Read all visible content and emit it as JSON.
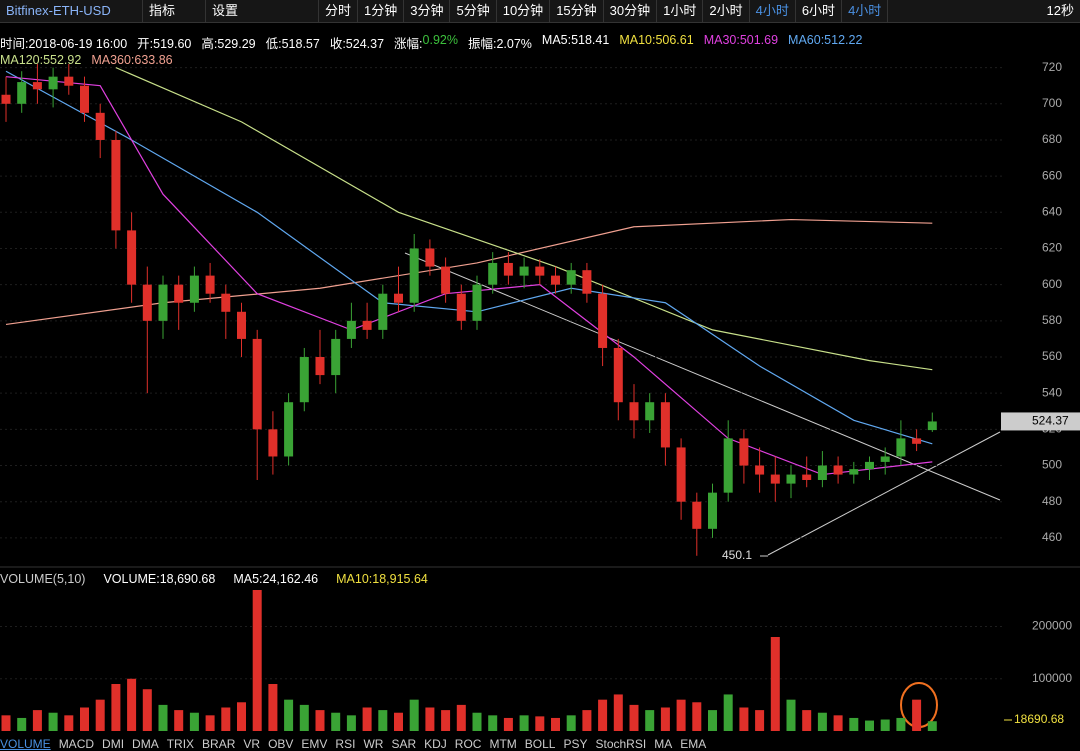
{
  "toolbar": {
    "symbol": "Bitfinex-ETH-USD",
    "indicator": "指标",
    "settings": "设置",
    "intervals": [
      "分时",
      "1分钟",
      "3分钟",
      "5分钟",
      "10分钟",
      "15分钟",
      "30分钟",
      "1小时",
      "2小时",
      "4小时",
      "6小时",
      "4小时"
    ],
    "active": [
      9,
      11
    ],
    "timer": "12秒"
  },
  "info": {
    "items": [
      {
        "text": "时间:2018-06-19 16:00",
        "color": "#ffffff"
      },
      {
        "text": "开:519.60",
        "color": "#ffffff"
      },
      {
        "text": "高:529.29",
        "color": "#ffffff"
      },
      {
        "text": "低:518.57",
        "color": "#ffffff"
      },
      {
        "text": "收:524.37",
        "color": "#ffffff"
      },
      {
        "text": "涨幅:",
        "color": "#ffffff"
      },
      {
        "text": "0.92%",
        "color": "#3cc03c"
      },
      {
        "text": "振幅:2.07%",
        "color": "#ffffff"
      },
      {
        "text": "MA5:518.41",
        "color": "#ffffff"
      },
      {
        "text": "MA10:506.61",
        "color": "#f0e040"
      },
      {
        "text": "MA30:501.69",
        "color": "#e040e0"
      },
      {
        "text": "MA60:512.22",
        "color": "#60a8f0"
      }
    ],
    "ma_items": [
      {
        "text": "MA120:552.92",
        "color": "#c8e08a"
      },
      {
        "text": "MA360:633.86",
        "color": "#f0a090"
      }
    ]
  },
  "volume_info": {
    "title": "VOLUME(5,10)",
    "items": [
      {
        "text": "VOLUME:18,690.68",
        "color": "#ffffff"
      },
      {
        "text": "MA5:24,162.46",
        "color": "#ffffff"
      },
      {
        "text": "MA10:18,915.64",
        "color": "#f0e040"
      }
    ]
  },
  "tabs": [
    "VOLUME",
    "MACD",
    "DMI",
    "DMA",
    "TRIX",
    "BRAR",
    "VR",
    "OBV",
    "EMV",
    "RSI",
    "WR",
    "SAR",
    "KDJ",
    "ROC",
    "MTM",
    "BOLL",
    "PSY",
    "StochRSI",
    "MA",
    "EMA"
  ],
  "chart_data": {
    "type": "candlestick",
    "up_color": "#3aa335",
    "down_color": "#e0302a",
    "ylim": [
      445,
      722
    ],
    "yticks": [
      460,
      480,
      500,
      520,
      540,
      560,
      580,
      600,
      620,
      640,
      660,
      680,
      700,
      720
    ],
    "annotation": "450.1",
    "candles": [
      {
        "open": 705,
        "high": 715,
        "low": 690,
        "close": 700
      },
      {
        "open": 700,
        "high": 718,
        "low": 695,
        "close": 712
      },
      {
        "open": 712,
        "high": 722,
        "low": 700,
        "close": 708
      },
      {
        "open": 708,
        "high": 720,
        "low": 698,
        "close": 715
      },
      {
        "open": 715,
        "high": 722,
        "low": 705,
        "close": 710
      },
      {
        "open": 710,
        "high": 715,
        "low": 690,
        "close": 695
      },
      {
        "open": 695,
        "high": 700,
        "low": 670,
        "close": 680
      },
      {
        "open": 680,
        "high": 685,
        "low": 620,
        "close": 630
      },
      {
        "open": 630,
        "high": 640,
        "low": 590,
        "close": 600
      },
      {
        "open": 600,
        "high": 610,
        "low": 540,
        "close": 580
      },
      {
        "open": 580,
        "high": 605,
        "low": 570,
        "close": 600
      },
      {
        "open": 600,
        "high": 605,
        "low": 575,
        "close": 590
      },
      {
        "open": 590,
        "high": 610,
        "low": 585,
        "close": 605
      },
      {
        "open": 605,
        "high": 612,
        "low": 590,
        "close": 595
      },
      {
        "open": 595,
        "high": 600,
        "low": 570,
        "close": 585
      },
      {
        "open": 585,
        "high": 590,
        "low": 560,
        "close": 570
      },
      {
        "open": 570,
        "high": 575,
        "low": 492,
        "close": 520
      },
      {
        "open": 520,
        "high": 530,
        "low": 495,
        "close": 505
      },
      {
        "open": 505,
        "high": 540,
        "low": 500,
        "close": 535
      },
      {
        "open": 535,
        "high": 565,
        "low": 530,
        "close": 560
      },
      {
        "open": 560,
        "high": 575,
        "low": 545,
        "close": 550
      },
      {
        "open": 550,
        "high": 575,
        "low": 540,
        "close": 570
      },
      {
        "open": 570,
        "high": 590,
        "low": 565,
        "close": 580
      },
      {
        "open": 580,
        "high": 590,
        "low": 570,
        "close": 575
      },
      {
        "open": 575,
        "high": 600,
        "low": 570,
        "close": 595
      },
      {
        "open": 595,
        "high": 610,
        "low": 585,
        "close": 590
      },
      {
        "open": 590,
        "high": 628,
        "low": 585,
        "close": 620
      },
      {
        "open": 620,
        "high": 625,
        "low": 605,
        "close": 610
      },
      {
        "open": 610,
        "high": 615,
        "low": 590,
        "close": 595
      },
      {
        "open": 595,
        "high": 600,
        "low": 575,
        "close": 580
      },
      {
        "open": 580,
        "high": 605,
        "low": 575,
        "close": 600
      },
      {
        "open": 600,
        "high": 618,
        "low": 595,
        "close": 612
      },
      {
        "open": 612,
        "high": 618,
        "low": 600,
        "close": 605
      },
      {
        "open": 605,
        "high": 615,
        "low": 598,
        "close": 610
      },
      {
        "open": 610,
        "high": 614,
        "low": 600,
        "close": 605
      },
      {
        "open": 605,
        "high": 610,
        "low": 595,
        "close": 600
      },
      {
        "open": 600,
        "high": 612,
        "low": 595,
        "close": 608
      },
      {
        "open": 608,
        "high": 612,
        "low": 590,
        "close": 595
      },
      {
        "open": 595,
        "high": 600,
        "low": 555,
        "close": 565
      },
      {
        "open": 565,
        "high": 570,
        "low": 525,
        "close": 535
      },
      {
        "open": 535,
        "high": 545,
        "low": 515,
        "close": 525
      },
      {
        "open": 525,
        "high": 540,
        "low": 518,
        "close": 535
      },
      {
        "open": 535,
        "high": 540,
        "low": 500,
        "close": 510
      },
      {
        "open": 510,
        "high": 515,
        "low": 470,
        "close": 480
      },
      {
        "open": 480,
        "high": 485,
        "low": 450.1,
        "close": 465
      },
      {
        "open": 465,
        "high": 490,
        "low": 460,
        "close": 485
      },
      {
        "open": 485,
        "high": 525,
        "low": 480,
        "close": 515
      },
      {
        "open": 515,
        "high": 520,
        "low": 490,
        "close": 500
      },
      {
        "open": 500,
        "high": 510,
        "low": 485,
        "close": 495
      },
      {
        "open": 495,
        "high": 505,
        "low": 480,
        "close": 490
      },
      {
        "open": 490,
        "high": 500,
        "low": 482,
        "close": 495
      },
      {
        "open": 495,
        "high": 505,
        "low": 488,
        "close": 492
      },
      {
        "open": 492,
        "high": 508,
        "low": 488,
        "close": 500
      },
      {
        "open": 500,
        "high": 505,
        "low": 490,
        "close": 495
      },
      {
        "open": 495,
        "high": 502,
        "low": 490,
        "close": 498
      },
      {
        "open": 498,
        "high": 505,
        "low": 492,
        "close": 502
      },
      {
        "open": 502,
        "high": 510,
        "low": 495,
        "close": 505
      },
      {
        "open": 505,
        "high": 525,
        "low": 500,
        "close": 515
      },
      {
        "open": 515,
        "high": 520,
        "low": 508,
        "close": 512
      },
      {
        "open": 519.6,
        "high": 529.29,
        "low": 518.57,
        "close": 524.37
      }
    ],
    "ma_lines": [
      {
        "color": "#f0a090",
        "x": [
          0,
          10,
          20,
          30,
          40,
          50,
          59
        ],
        "values": [
          578,
          590,
          598,
          612,
          632,
          636,
          634
        ]
      },
      {
        "color": "#c8e08a",
        "x": [
          7,
          15,
          25,
          35,
          45,
          55,
          59
        ],
        "values": [
          720,
          690,
          640,
          610,
          575,
          558,
          553
        ]
      },
      {
        "color": "#60a8f0",
        "x": [
          0,
          8,
          16,
          24,
          30,
          36,
          42,
          48,
          54,
          59
        ],
        "values": [
          718,
          680,
          640,
          590,
          585,
          598,
          590,
          555,
          525,
          512
        ]
      },
      {
        "color": "#e040e0",
        "x": [
          0,
          6,
          10,
          16,
          22,
          28,
          34,
          40,
          46,
          52,
          59
        ],
        "values": [
          715,
          710,
          650,
          595,
          575,
          595,
          600,
          560,
          515,
          495,
          502
        ]
      }
    ],
    "volume": [
      30000,
      25000,
      40000,
      35000,
      30000,
      45000,
      60000,
      90000,
      100000,
      80000,
      50000,
      40000,
      35000,
      30000,
      45000,
      55000,
      270000,
      90000,
      60000,
      50000,
      40000,
      35000,
      30000,
      45000,
      40000,
      35000,
      60000,
      45000,
      40000,
      50000,
      35000,
      30000,
      25000,
      30000,
      28000,
      25000,
      30000,
      40000,
      60000,
      70000,
      50000,
      40000,
      45000,
      60000,
      55000,
      40000,
      70000,
      45000,
      40000,
      180000,
      60000,
      40000,
      35000,
      30000,
      25000,
      20000,
      22000,
      25000,
      60000,
      18690.68
    ],
    "vlim": [
      0,
      270000
    ],
    "vticks": [
      100000,
      200000
    ]
  }
}
